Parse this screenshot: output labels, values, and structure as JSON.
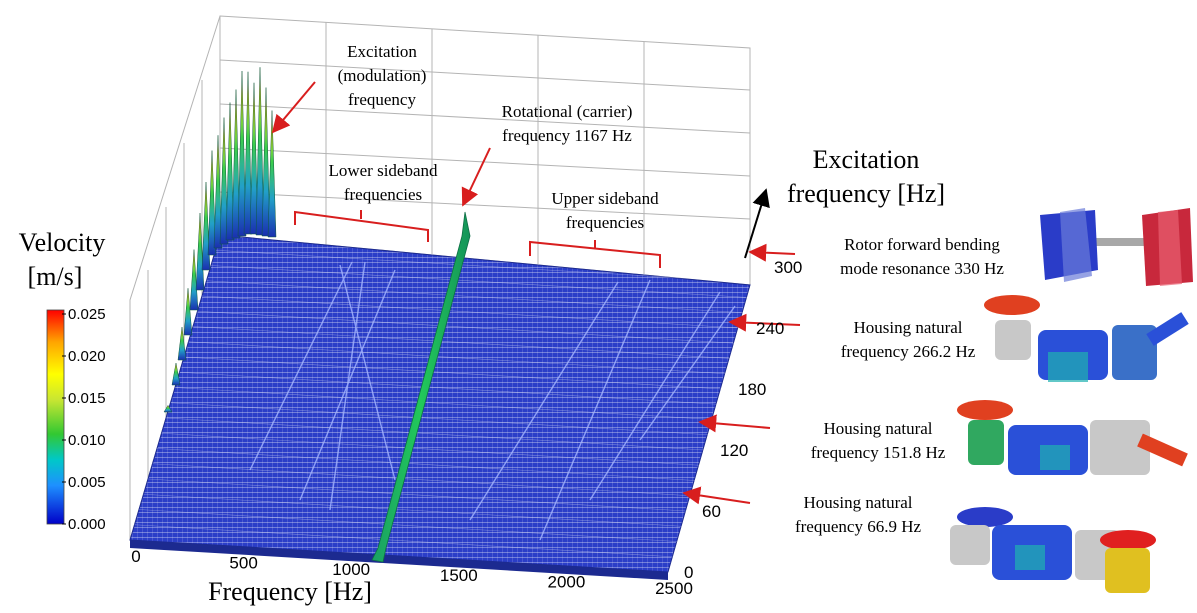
{
  "chart_data": {
    "type": "waterfall-3d",
    "xlabel": "Frequency [Hz]",
    "ylabel": "Excitation frequency [Hz]",
    "zlabel": "Velocity [m/s]",
    "x_ticks": [
      "0",
      "500",
      "1000",
      "1500",
      "2000",
      "2500"
    ],
    "y_ticks": [
      "0",
      "60",
      "120",
      "180",
      "240",
      "300"
    ],
    "xlim": [
      0,
      2500
    ],
    "ylim": [
      0,
      300
    ],
    "colorbar": {
      "label_line1": "Velocity",
      "label_line2": "[m/s]",
      "ticks": [
        "0.025",
        "0.020",
        "0.015",
        "0.010",
        "0.005",
        "0.000"
      ],
      "range": [
        0.0,
        0.025
      ],
      "colors": [
        "#0000c8",
        "#1e90ff",
        "#00c8c8",
        "#32c832",
        "#c8e632",
        "#ffff00",
        "#ffa500",
        "#ff0000"
      ]
    },
    "ridges": [
      {
        "name": "carrier",
        "x_value": 1167
      },
      {
        "name": "modulation",
        "x_peak": 550
      }
    ],
    "annotations": {
      "excitation_mod": [
        "Excitation",
        "(modulation)",
        "frequency"
      ],
      "rotational": [
        "Rotational (carrier)",
        "frequency 1167 Hz"
      ],
      "lower_sideband": [
        "Lower sideband",
        "frequencies"
      ],
      "upper_sideband": [
        "Upper sideband",
        "frequencies"
      ]
    },
    "right_labels": [
      {
        "lines": [
          "Rotor forward bending",
          "mode resonance 330 Hz"
        ],
        "y_value": 330
      },
      {
        "lines": [
          "Housing natural",
          "frequency 266.2 Hz"
        ],
        "y_value": 266.2
      },
      {
        "lines": [
          "Housing natural",
          "frequency 151.8 Hz"
        ],
        "y_value": 151.8
      },
      {
        "lines": [
          "Housing natural",
          "frequency 66.9 Hz"
        ],
        "y_value": 66.9
      }
    ]
  }
}
